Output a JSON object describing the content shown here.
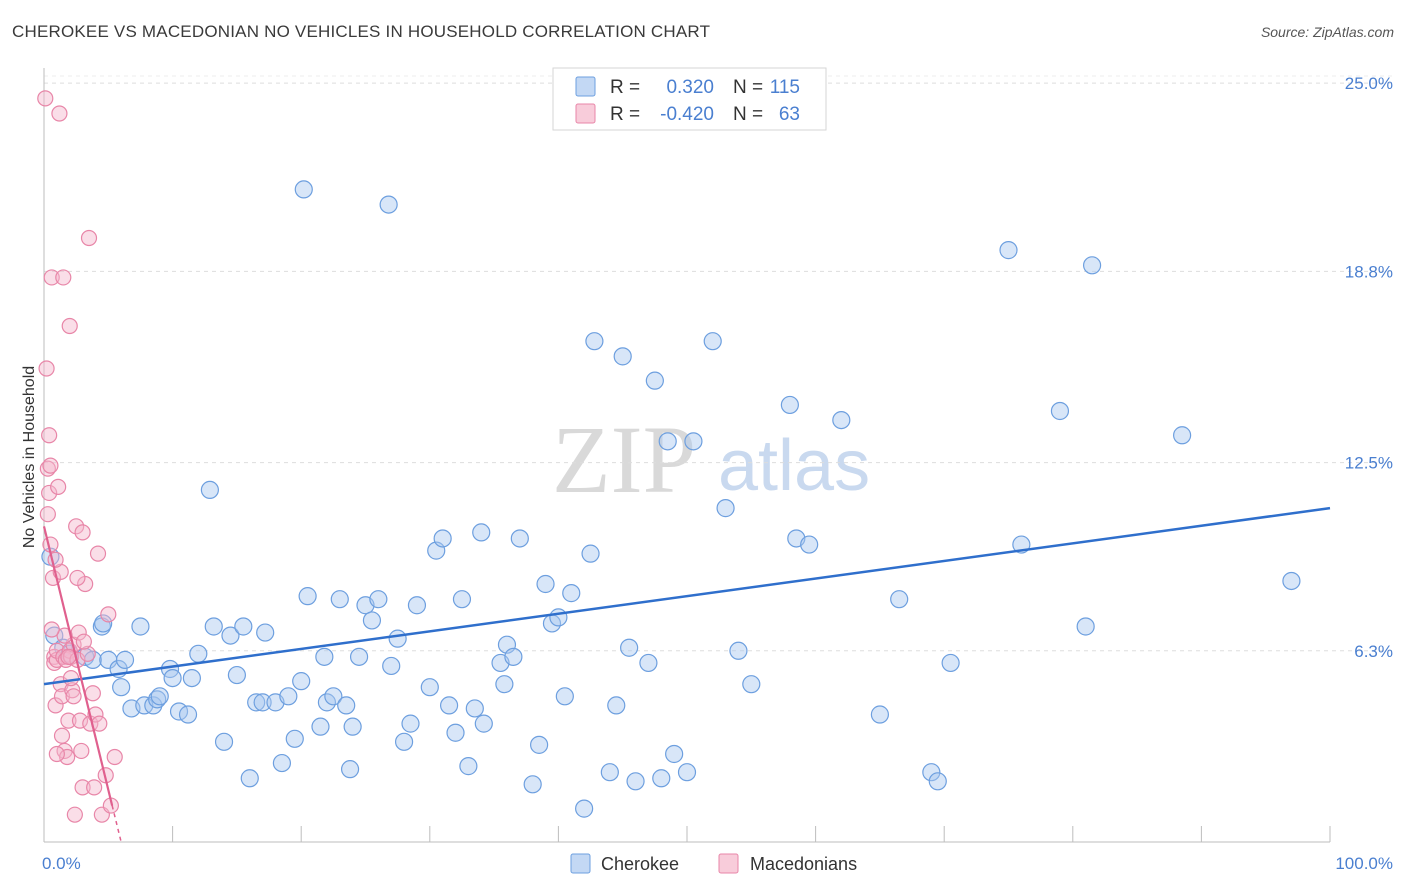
{
  "header": {
    "title": "CHEROKEE VS MACEDONIAN NO VEHICLES IN HOUSEHOLD CORRELATION CHART",
    "source": "Source: ZipAtlas.com"
  },
  "watermark": {
    "zip": "ZIP",
    "atlas": "atlas"
  },
  "colors": {
    "cherokee_fill": "#a9c8f0",
    "cherokee_stroke": "#6d9fdf",
    "cherokee_line": "#2f6fcc",
    "macedonian_fill": "#f5b6cb",
    "macedonian_stroke": "#e886a8",
    "macedonian_line": "#e0608e",
    "tick_label": "#4a7fd0"
  },
  "chart_data": {
    "type": "scatter",
    "title": "CHEROKEE VS MACEDONIAN NO VEHICLES IN HOUSEHOLD CORRELATION CHART",
    "xlabel": "",
    "ylabel": "No Vehicles in Household",
    "xlim": [
      0,
      100
    ],
    "ylim": [
      0,
      25.5
    ],
    "x_tick_labels": [
      "0.0%",
      "100.0%"
    ],
    "y_ticks": [
      6.3,
      12.5,
      18.8,
      25.0
    ],
    "y_tick_labels": [
      "6.3%",
      "12.5%",
      "18.8%",
      "25.0%"
    ],
    "grid": true,
    "legend": {
      "position": "top-center",
      "entries": [
        {
          "r_label": "R =",
          "r_value": "0.320",
          "n_label": "N =",
          "n_value": "115"
        },
        {
          "r_label": "R =",
          "r_value": "-0.420",
          "n_label": "N =",
          "n_value": "63"
        }
      ]
    },
    "series": [
      {
        "name": "Cherokee",
        "trend": {
          "x": [
            0,
            100
          ],
          "y": [
            5.2,
            11.0
          ]
        },
        "points": [
          [
            0.5,
            9.4
          ],
          [
            0.8,
            6.8
          ],
          [
            1.5,
            6.4
          ],
          [
            2.0,
            6.2
          ],
          [
            3.2,
            6.1
          ],
          [
            3.8,
            6.0
          ],
          [
            4.5,
            7.1
          ],
          [
            4.6,
            7.2
          ],
          [
            5.0,
            6.0
          ],
          [
            5.8,
            5.7
          ],
          [
            6.0,
            5.1
          ],
          [
            6.3,
            6.0
          ],
          [
            6.8,
            4.4
          ],
          [
            7.5,
            7.1
          ],
          [
            7.8,
            4.5
          ],
          [
            8.5,
            4.5
          ],
          [
            8.8,
            4.7
          ],
          [
            9.0,
            4.8
          ],
          [
            9.8,
            5.7
          ],
          [
            10.0,
            5.4
          ],
          [
            10.5,
            4.3
          ],
          [
            11.2,
            4.2
          ],
          [
            11.5,
            5.4
          ],
          [
            12.0,
            6.2
          ],
          [
            12.9,
            11.6
          ],
          [
            13.2,
            7.1
          ],
          [
            14.0,
            3.3
          ],
          [
            14.5,
            6.8
          ],
          [
            15.0,
            5.5
          ],
          [
            15.5,
            7.1
          ],
          [
            16.0,
            2.1
          ],
          [
            16.5,
            4.6
          ],
          [
            17.0,
            4.6
          ],
          [
            17.2,
            6.9
          ],
          [
            18.0,
            4.6
          ],
          [
            18.5,
            2.6
          ],
          [
            19.0,
            4.8
          ],
          [
            19.5,
            3.4
          ],
          [
            20.0,
            5.3
          ],
          [
            20.2,
            21.5
          ],
          [
            20.5,
            8.1
          ],
          [
            21.5,
            3.8
          ],
          [
            21.8,
            6.1
          ],
          [
            22.0,
            4.6
          ],
          [
            22.5,
            4.8
          ],
          [
            23.0,
            8.0
          ],
          [
            23.5,
            4.5
          ],
          [
            23.8,
            2.4
          ],
          [
            24.0,
            3.8
          ],
          [
            24.5,
            6.1
          ],
          [
            25.0,
            7.8
          ],
          [
            25.5,
            7.3
          ],
          [
            26.0,
            8.0
          ],
          [
            26.8,
            21.0
          ],
          [
            27.0,
            5.8
          ],
          [
            27.5,
            6.7
          ],
          [
            28.0,
            3.3
          ],
          [
            28.5,
            3.9
          ],
          [
            29.0,
            7.8
          ],
          [
            30.0,
            5.1
          ],
          [
            30.5,
            9.6
          ],
          [
            31.0,
            10.0
          ],
          [
            31.5,
            4.5
          ],
          [
            32.0,
            3.6
          ],
          [
            32.5,
            8.0
          ],
          [
            33.0,
            2.5
          ],
          [
            33.5,
            4.4
          ],
          [
            34.0,
            10.2
          ],
          [
            34.2,
            3.9
          ],
          [
            35.5,
            5.9
          ],
          [
            35.8,
            5.2
          ],
          [
            36.0,
            6.5
          ],
          [
            36.5,
            6.1
          ],
          [
            37.0,
            10.0
          ],
          [
            38.0,
            1.9
          ],
          [
            38.5,
            3.2
          ],
          [
            39.0,
            8.5
          ],
          [
            39.5,
            7.2
          ],
          [
            40.0,
            7.4
          ],
          [
            40.5,
            4.8
          ],
          [
            41.0,
            8.2
          ],
          [
            42.0,
            1.1
          ],
          [
            42.5,
            9.5
          ],
          [
            42.8,
            16.5
          ],
          [
            44.0,
            2.3
          ],
          [
            44.5,
            4.5
          ],
          [
            45.0,
            16.0
          ],
          [
            45.5,
            6.4
          ],
          [
            46.0,
            2.0
          ],
          [
            47.0,
            5.9
          ],
          [
            47.5,
            15.2
          ],
          [
            48.0,
            2.1
          ],
          [
            48.5,
            13.2
          ],
          [
            49.0,
            2.9
          ],
          [
            50.0,
            2.3
          ],
          [
            50.5,
            13.2
          ],
          [
            52.0,
            16.5
          ],
          [
            53.0,
            11.0
          ],
          [
            54.0,
            6.3
          ],
          [
            55.0,
            5.2
          ],
          [
            58.0,
            14.4
          ],
          [
            58.5,
            10.0
          ],
          [
            59.5,
            9.8
          ],
          [
            62.0,
            13.9
          ],
          [
            65.0,
            4.2
          ],
          [
            66.5,
            8.0
          ],
          [
            69.0,
            2.3
          ],
          [
            69.5,
            2.0
          ],
          [
            70.5,
            5.9
          ],
          [
            75.0,
            19.5
          ],
          [
            76.0,
            9.8
          ],
          [
            79.0,
            14.2
          ],
          [
            81.0,
            7.1
          ],
          [
            81.5,
            19.0
          ],
          [
            88.5,
            13.4
          ],
          [
            97.0,
            8.6
          ]
        ]
      },
      {
        "name": "Macedonians",
        "trend": {
          "x": [
            0,
            5.3
          ],
          "y": [
            10.4,
            1.2
          ],
          "dashed_to": [
            6.0,
            0
          ]
        },
        "points": [
          [
            0.1,
            24.5
          ],
          [
            0.2,
            15.6
          ],
          [
            0.3,
            12.3
          ],
          [
            0.3,
            10.8
          ],
          [
            0.4,
            13.4
          ],
          [
            0.4,
            11.5
          ],
          [
            0.5,
            9.8
          ],
          [
            0.6,
            18.6
          ],
          [
            0.7,
            8.7
          ],
          [
            0.8,
            6.1
          ],
          [
            0.8,
            5.9
          ],
          [
            0.9,
            4.5
          ],
          [
            1.0,
            6.0
          ],
          [
            1.0,
            6.3
          ],
          [
            1.1,
            11.7
          ],
          [
            1.2,
            24.0
          ],
          [
            1.3,
            5.2
          ],
          [
            1.4,
            3.5
          ],
          [
            1.4,
            4.8
          ],
          [
            1.5,
            18.6
          ],
          [
            1.5,
            6.1
          ],
          [
            1.6,
            3.0
          ],
          [
            1.7,
            6.0
          ],
          [
            1.8,
            2.8
          ],
          [
            1.9,
            4.0
          ],
          [
            2.0,
            17.0
          ],
          [
            2.0,
            6.3
          ],
          [
            2.1,
            6.1
          ],
          [
            2.2,
            5.0
          ],
          [
            2.3,
            6.5
          ],
          [
            2.3,
            4.8
          ],
          [
            2.4,
            0.9
          ],
          [
            2.5,
            10.4
          ],
          [
            2.6,
            6.0
          ],
          [
            2.7,
            6.9
          ],
          [
            2.8,
            4.0
          ],
          [
            3.0,
            10.2
          ],
          [
            3.0,
            1.8
          ],
          [
            3.2,
            8.5
          ],
          [
            3.4,
            6.2
          ],
          [
            3.5,
            19.9
          ],
          [
            3.6,
            3.9
          ],
          [
            3.8,
            4.9
          ],
          [
            3.9,
            1.8
          ],
          [
            4.0,
            4.2
          ],
          [
            4.2,
            9.5
          ],
          [
            4.3,
            3.9
          ],
          [
            4.5,
            0.9
          ],
          [
            4.8,
            2.2
          ],
          [
            5.0,
            7.5
          ],
          [
            5.2,
            1.2
          ],
          [
            5.5,
            2.8
          ],
          [
            0.5,
            12.4
          ],
          [
            1.3,
            8.9
          ],
          [
            1.9,
            6.1
          ],
          [
            2.6,
            8.7
          ],
          [
            3.1,
            6.6
          ],
          [
            0.9,
            9.3
          ],
          [
            1.6,
            6.8
          ],
          [
            2.1,
            5.4
          ],
          [
            0.6,
            7.0
          ],
          [
            1.0,
            2.9
          ],
          [
            2.9,
            3.0
          ]
        ]
      }
    ]
  }
}
